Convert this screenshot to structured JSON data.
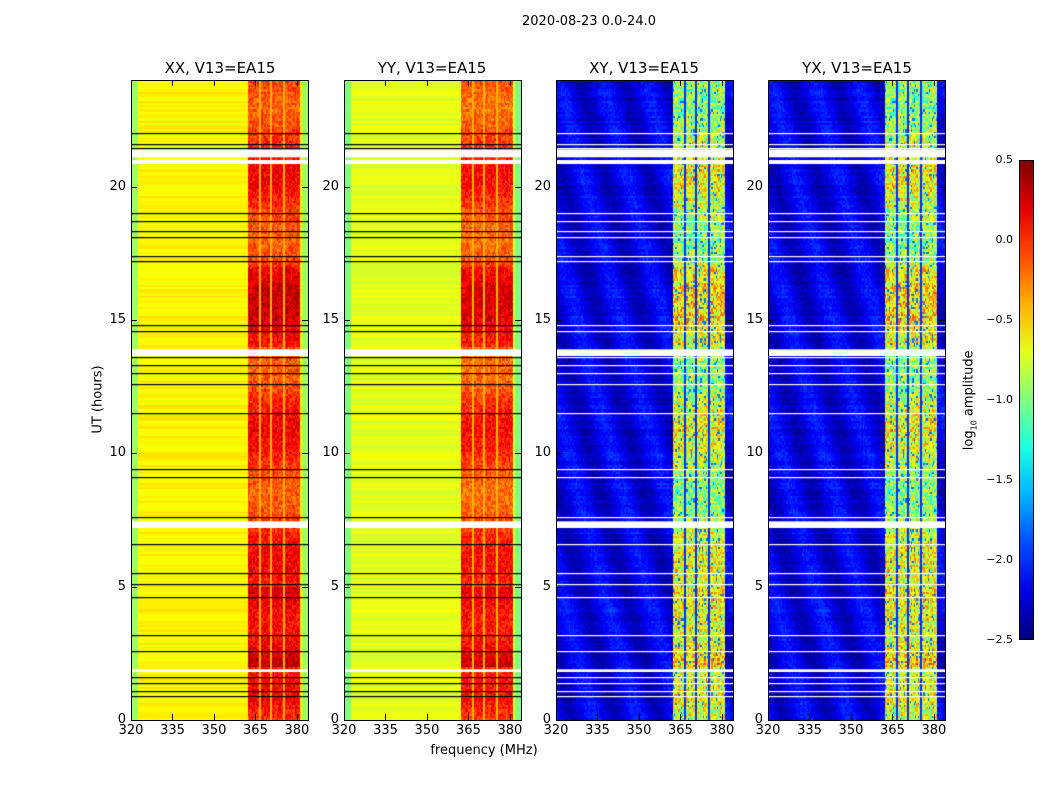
{
  "chart_data": {
    "type": "heatmap",
    "title": "2020-08-23 0.0-24.0",
    "xlabel": "frequency (MHz)",
    "ylabel": "UT (hours)",
    "xlim": [
      320,
      384
    ],
    "ylim": [
      0,
      24
    ],
    "xticks": [
      "320",
      "335",
      "350",
      "365",
      "380"
    ],
    "yticks": [
      "0",
      "5",
      "10",
      "15",
      "20"
    ],
    "colorbar": {
      "label_main": "log",
      "label_sub": "10",
      "label_rest": " amplitude",
      "colormap": "jet",
      "range": [
        -2.5,
        0.5
      ],
      "ticks": [
        "0.5",
        "0.0",
        "−0.5",
        "−1.0",
        "−1.5",
        "−2.0",
        "−2.5"
      ]
    },
    "panels": [
      {
        "title": "XX, V13=EA15",
        "offband_log_amp": -0.6,
        "band_log_amp": 0.0,
        "flag_color": "#000000"
      },
      {
        "title": "YY, V13=EA15",
        "offband_log_amp": -0.7,
        "band_log_amp": -0.05,
        "flag_color": "#000000"
      },
      {
        "title": "XY, V13=EA15",
        "offband_log_amp": -2.2,
        "band_log_amp": -0.8,
        "flag_color": "#ffffff"
      },
      {
        "title": "YX, V13=EA15",
        "offband_log_amp": -2.2,
        "band_log_amp": -0.8,
        "flag_color": "#ffffff"
      }
    ],
    "band_mhz": [
      362,
      381
    ],
    "band_channel_gaps_mhz": [
      366.3,
      370.6,
      375.0
    ],
    "flagged_gaps_hours": [
      [
        20.85,
        21.0
      ],
      [
        21.1,
        21.4
      ],
      [
        13.65,
        13.9
      ],
      [
        7.2,
        7.45
      ],
      [
        1.8,
        1.9
      ]
    ],
    "flagged_lines_hours": [
      22.0,
      21.6,
      21.45,
      19.0,
      18.7,
      18.35,
      18.1,
      17.4,
      17.2,
      14.8,
      14.6,
      13.6,
      13.3,
      13.0,
      12.6,
      11.5,
      9.4,
      9.1,
      7.6,
      6.6,
      5.5,
      5.1,
      4.6,
      3.2,
      2.6,
      1.6,
      1.4,
      1.1,
      0.9
    ]
  }
}
